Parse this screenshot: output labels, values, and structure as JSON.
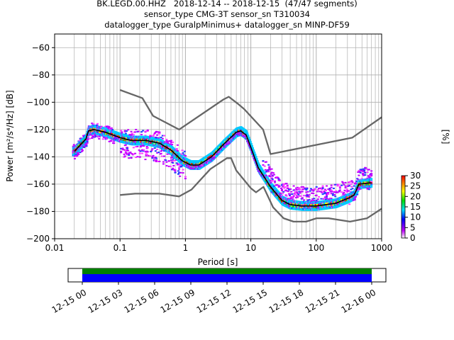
{
  "title": {
    "line1": "BK.LEGD.00.HHZ   2018-12-14 -- 2018-12-15  (47/47 segments)",
    "line2": "sensor_type CMG-3T sensor_sn T310034",
    "line3": "datalogger_type GuralpMinimus+ datalogger_sn MINP-DF59"
  },
  "colors": {
    "axis": "#000000",
    "grid": "#b0b0b0",
    "noise_model": "#666666",
    "mode_line": "#000000",
    "coverage_data": "#0000ff",
    "coverage_gaps": "#008000"
  },
  "chart_data": [
    {
      "type": "heatmap",
      "name": "PPSD",
      "xlabel": "Period [s]",
      "ylabel": "Power [m²/s⁴/Hz] [dB]",
      "xscale": "log",
      "xlim": [
        0.01,
        1000
      ],
      "ylim": [
        -200,
        -50
      ],
      "xtick_labels": [
        "0.01",
        "0.1",
        "1",
        "10",
        "100",
        "1000"
      ],
      "xtick_values": [
        0.01,
        0.1,
        1,
        10,
        100,
        1000
      ],
      "ytick_values": [
        -60,
        -80,
        -100,
        -120,
        -140,
        -160,
        -180,
        -200
      ],
      "grid": true,
      "colorbar": {
        "label": "[%]",
        "range": [
          0,
          30
        ],
        "ticks": [
          0,
          5,
          10,
          15,
          20,
          25,
          30
        ]
      },
      "series": [
        {
          "name": "New High Noise Model",
          "x": [
            0.1,
            0.22,
            0.32,
            0.8,
            3.8,
            4.6,
            6.3,
            7.9,
            15.4,
            20,
            354.8,
            1000
          ],
          "y": [
            -91,
            -97,
            -110,
            -120,
            -98,
            -96,
            -101,
            -105,
            -120,
            -138,
            -126,
            -111
          ]
        },
        {
          "name": "New Low Noise Model",
          "x": [
            0.1,
            0.17,
            0.4,
            0.8,
            1.24,
            2.4,
            4.3,
            5.0,
            6.0,
            10.0,
            12.0,
            15.6,
            21.9,
            31.6,
            45,
            70,
            101,
            154,
            328,
            600,
            1000
          ],
          "y": [
            -168,
            -167,
            -167,
            -169,
            -164,
            -149,
            -141,
            -141,
            -150,
            -163,
            -166,
            -162,
            -177,
            -185,
            -187.5,
            -187.5,
            -185,
            -185,
            -187.5,
            -185,
            -178
          ]
        },
        {
          "name": "Mode",
          "x": [
            0.02,
            0.025,
            0.03,
            0.033,
            0.04,
            0.06,
            0.1,
            0.15,
            0.25,
            0.4,
            0.6,
            0.9,
            1.2,
            1.6,
            2.5,
            4,
            6,
            7,
            8.5,
            10,
            13,
            20,
            30,
            40,
            60,
            100,
            200,
            320,
            380,
            450,
            700
          ],
          "y": [
            -136,
            -131,
            -127,
            -121,
            -120,
            -122,
            -126,
            -128,
            -128,
            -130,
            -135,
            -143,
            -146,
            -146,
            -140,
            -130,
            -122,
            -121,
            -124,
            -133,
            -148,
            -162,
            -172,
            -175,
            -176,
            -176,
            -174,
            -170,
            -168,
            -160,
            -159
          ]
        }
      ]
    },
    {
      "type": "timeline",
      "name": "Data coverage",
      "tick_labels": [
        "12-15 00",
        "12-15 03",
        "12-15 06",
        "12-15 09",
        "12-15 12",
        "12-15 15",
        "12-15 18",
        "12-15 21",
        "12-16 00"
      ]
    }
  ]
}
